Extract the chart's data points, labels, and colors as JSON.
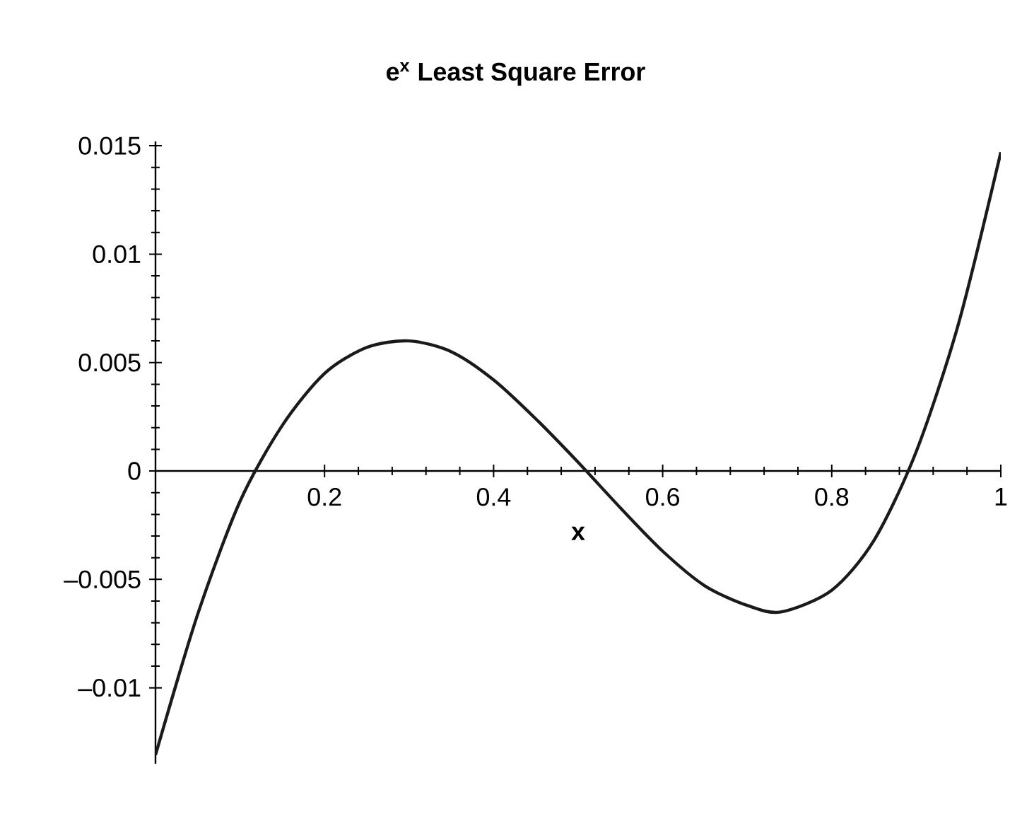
{
  "chart_data": {
    "type": "line",
    "title": "**e$^{x}$ Least Square Error**",
    "xlabel": "**x**",
    "x": [
      0,
      0.05,
      0.1,
      0.15,
      0.2,
      0.25,
      0.3,
      0.35,
      0.4,
      0.45,
      0.5,
      0.55,
      0.6,
      0.65,
      0.7,
      0.74,
      0.8,
      0.85,
      0.9,
      0.95,
      1
    ],
    "values": [
      -0.0131,
      -0.0066,
      -0.0014,
      0.0021,
      0.0045,
      0.0057,
      0.006,
      0.0055,
      0.0042,
      0.0024,
      0.0004,
      -0.0017,
      -0.0037,
      -0.0053,
      -0.0062,
      -0.0065,
      -0.0055,
      -0.0032,
      0.0009,
      0.0068,
      0.0147
    ],
    "color": "#1a1a1a",
    "xlim": [
      0,
      1
    ],
    "ylim": [
      -0.0135,
      0.0152
    ],
    "xticks": [
      0.2,
      0.4,
      0.6,
      0.8,
      1
    ],
    "yticks": [
      {
        "value": -0.01,
        "label": "–0.01"
      },
      {
        "value": -0.005,
        "label": "–0.005"
      },
      0,
      0.005,
      0.01,
      0.015
    ]
  }
}
